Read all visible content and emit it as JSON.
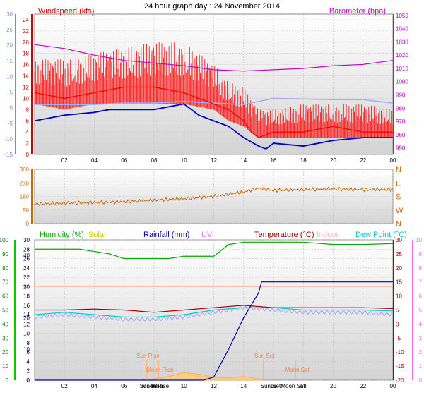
{
  "chart_data": [
    {
      "type": "line",
      "title": "24 hour graph day : 24 November 2014",
      "panel": "wind_pressure",
      "x_tick_labels": [
        "02",
        "04",
        "06",
        "08",
        "10",
        "12",
        "14",
        "16",
        "18",
        "20",
        "22",
        "00"
      ],
      "left_axis": {
        "label": "Windspeed (kts)",
        "ylim": [
          0,
          25
        ],
        "ticks": [
          0,
          2,
          4,
          6,
          8,
          10,
          12,
          14,
          16,
          18,
          20,
          22,
          24
        ],
        "color": "#ff0000"
      },
      "outer_left_axis": {
        "label": "",
        "ylim": [
          -15,
          30
        ],
        "ticks": [
          -15,
          -10,
          -5,
          0,
          5,
          10,
          15,
          20,
          25,
          30
        ],
        "color": "#8888cc"
      },
      "right_axis": {
        "label": "Barometer (hpa)",
        "ylim": [
          945,
          1051
        ],
        "ticks": [
          950,
          960,
          970,
          980,
          990,
          1000,
          1010,
          1020,
          1030,
          1040,
          1050
        ],
        "color": "#cc00cc"
      },
      "series": [
        {
          "name": "Windspeed (kts)",
          "color": "#ff0000",
          "x": [
            0,
            2,
            4,
            6,
            8,
            10,
            12,
            13,
            14,
            14.5,
            15,
            16,
            18,
            20,
            22,
            24
          ],
          "y": [
            11,
            10,
            11,
            12,
            12,
            11,
            9,
            8,
            6,
            4,
            3,
            4,
            4,
            5,
            4,
            4
          ]
        },
        {
          "name": "Barometer (hpa)",
          "color": "#cc00cc",
          "x": [
            0,
            2,
            4,
            6,
            8,
            10,
            12,
            14,
            16,
            18,
            20,
            22,
            24
          ],
          "y": [
            1028,
            1025,
            1020,
            1016,
            1014,
            1012,
            1009,
            1008,
            1009,
            1010,
            1012,
            1013,
            1016
          ]
        },
        {
          "color": "#aaaaff",
          "x": [
            0,
            2,
            4,
            6,
            8,
            10,
            12,
            14,
            16,
            18,
            20,
            22,
            24
          ],
          "y": [
            1,
            1,
            1,
            1.5,
            1.5,
            2,
            1.5,
            1,
            3,
            2.8,
            2.6,
            2.6,
            1.5
          ]
        }
      ],
      "gust_band": {
        "color": "#ff0000",
        "x": [
          0,
          2,
          4,
          6,
          8,
          10,
          12,
          13,
          14,
          15,
          16,
          18,
          20,
          22,
          24
        ],
        "upper": [
          17,
          17,
          18,
          19,
          20,
          20,
          16,
          13,
          12,
          8,
          8,
          9,
          9,
          9,
          8
        ],
        "lower": [
          9,
          8,
          9,
          9,
          9,
          9,
          8,
          6,
          5,
          3,
          3,
          3,
          3,
          3,
          3
        ]
      },
      "low_series": {
        "color": "#0000cc",
        "x": [
          0,
          1,
          2,
          4,
          5,
          6,
          8,
          10,
          11,
          12,
          13,
          14,
          15,
          15.5,
          16,
          18,
          20,
          22,
          24
        ],
        "y": [
          6,
          6.5,
          7,
          7.5,
          8,
          8,
          8,
          9,
          7,
          6,
          5,
          3,
          1.5,
          1,
          2,
          1.5,
          2.5,
          3,
          3
        ]
      }
    },
    {
      "type": "line",
      "panel": "wind_direction",
      "left_axis": {
        "ylim": [
          0,
          360
        ],
        "ticks": [
          0,
          90,
          180,
          270,
          360
        ]
      },
      "right_labels": [
        "N",
        "W",
        "S",
        "E",
        "N"
      ],
      "series": [
        {
          "color": "#cc6600",
          "x": [
            0,
            2,
            4,
            6,
            8,
            10,
            12,
            14,
            15,
            16,
            18,
            20,
            22,
            24
          ],
          "y": [
            130,
            135,
            140,
            145,
            155,
            165,
            180,
            210,
            235,
            220,
            225,
            230,
            225,
            225
          ]
        }
      ]
    },
    {
      "type": "line",
      "panel": "environment",
      "headers": [
        {
          "text": "Humidity (%)",
          "color": "#00aa00"
        },
        {
          "text": "Solar",
          "color": "#cccc00"
        },
        {
          "text": "Rainfall (mm)",
          "color": "#0000aa"
        },
        {
          "text": "UV",
          "color": "#ff66ff"
        },
        {
          "text": "Temperature (°C)",
          "color": "#aa0000"
        },
        {
          "text": "Indoor",
          "color": "#ffbbaa"
        },
        {
          "text": "Dew Point (°C)",
          "color": "#00cccc"
        }
      ],
      "humidity_axis": {
        "ylim": [
          0,
          100
        ],
        "ticks": [
          0,
          10,
          20,
          30,
          40,
          50,
          60,
          70,
          80,
          90,
          100
        ]
      },
      "temp_axis": {
        "ylim": [
          0,
          30
        ],
        "ticks": [
          0,
          2,
          4,
          6,
          8,
          10,
          12,
          14,
          16,
          18,
          20,
          22,
          24,
          26,
          28,
          30
        ]
      },
      "rain_axis": {
        "ylim": [
          0,
          40
        ],
        "ticks": [
          0,
          10,
          20,
          30,
          40
        ]
      },
      "right_temp_axis": {
        "ylim": [
          -20,
          30
        ],
        "ticks": [
          -20,
          -15,
          -10,
          -5,
          0,
          5,
          10,
          15,
          20,
          25,
          30
        ]
      },
      "uv_axis": {
        "ylim": [
          0,
          10
        ],
        "ticks": [
          0,
          1,
          2,
          3,
          4,
          5,
          6,
          7,
          8,
          9,
          10
        ]
      },
      "x_tick_labels": [
        "02",
        "04",
        "06",
        "08",
        "10",
        "12",
        "14",
        "16",
        "18",
        "20",
        "22",
        "00"
      ],
      "series": [
        {
          "name": "Humidity (%)",
          "color": "#00aa00",
          "x": [
            0,
            2,
            3,
            4,
            5,
            6,
            8,
            9,
            10,
            11,
            12,
            13,
            14,
            16,
            18,
            20,
            22,
            24
          ],
          "y": [
            28,
            28,
            28,
            27.5,
            27,
            26,
            26,
            26,
            26.5,
            26.5,
            26.5,
            29,
            29.5,
            29.5,
            29.5,
            29,
            29,
            29.2
          ]
        },
        {
          "name": "Temperature (°C)",
          "color": "#aa0000",
          "x": [
            0,
            2,
            4,
            6,
            8,
            10,
            12,
            14,
            16,
            18,
            20,
            22,
            24
          ],
          "y": [
            15,
            15,
            15.2,
            15,
            14.5,
            15,
            15.5,
            16,
            15.5,
            15.5,
            15.5,
            15.5,
            15.3
          ]
        },
        {
          "name": "Indoor",
          "color": "#ffbbaa",
          "x": [
            0,
            24
          ],
          "y": [
            20,
            20
          ]
        },
        {
          "name": "Dew Point (°C)",
          "color": "#00cccc",
          "x": [
            0,
            2,
            4,
            6,
            8,
            10,
            12,
            14,
            16,
            18,
            20,
            22,
            24
          ],
          "y": [
            14,
            14.5,
            14,
            13.5,
            13.5,
            14,
            15,
            15.5,
            15.5,
            15,
            15,
            15,
            14.8
          ]
        },
        {
          "color": "#aaaaff",
          "x": [
            0,
            2,
            4,
            6,
            8,
            10,
            12,
            14,
            16,
            18,
            20,
            22,
            24
          ],
          "y": [
            13.5,
            14,
            13.5,
            13,
            13,
            13.5,
            14.5,
            15.5,
            15,
            14.5,
            14.5,
            14.5,
            14
          ]
        },
        {
          "name": "Rainfall (mm)",
          "color": "#0000aa",
          "x": [
            0,
            11.3,
            12,
            13,
            14,
            15,
            15.2,
            24
          ],
          "y": [
            0,
            0,
            1,
            10,
            20,
            28,
            31.5,
            31.5
          ]
        },
        {
          "name": "Solar",
          "color": "#ffaa33",
          "x": [
            7,
            8,
            9,
            9.5,
            10,
            11,
            12,
            13,
            14,
            15,
            15.3
          ],
          "y": [
            0,
            0.3,
            0.8,
            1.2,
            1.6,
            1.3,
            0.6,
            0.5,
            0.8,
            0.3,
            0
          ]
        }
      ],
      "markers": [
        {
          "label": "Sun Rise",
          "x": 7.5
        },
        {
          "label": "Moon Rise",
          "x": 8.3
        },
        {
          "label": "Sun Set",
          "x": 15.3
        },
        {
          "label": "Moon Set",
          "x": 17.5
        }
      ],
      "bottom_labels": [
        "Sun Rise",
        "Sun Set",
        "Moon Rise",
        "Moon Set"
      ]
    }
  ]
}
